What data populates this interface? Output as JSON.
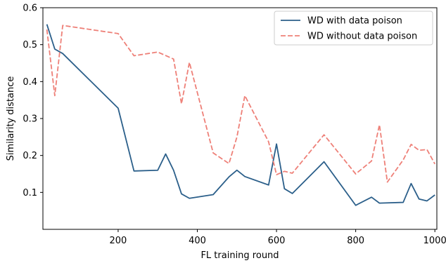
{
  "chart_data": {
    "type": "line",
    "xlabel": "FL training round",
    "ylabel": "Similarity distance",
    "xlim": [
      10,
      1005
    ],
    "ylim": [
      0.0,
      0.6
    ],
    "xticks": [
      200,
      400,
      600,
      800,
      1000
    ],
    "yticks": [
      0.1,
      0.2,
      0.3,
      0.4,
      0.5,
      0.6
    ],
    "grid": false,
    "legend_position": "top-right",
    "series": [
      {
        "name": "WD with data poison",
        "color": "#2b5f8a",
        "style": "solid",
        "points": [
          [
            20,
            0.555
          ],
          [
            40,
            0.488
          ],
          [
            60,
            0.476
          ],
          [
            200,
            0.328
          ],
          [
            240,
            0.158
          ],
          [
            300,
            0.16
          ],
          [
            320,
            0.204
          ],
          [
            340,
            0.16
          ],
          [
            360,
            0.096
          ],
          [
            380,
            0.084
          ],
          [
            440,
            0.094
          ],
          [
            480,
            0.142
          ],
          [
            500,
            0.16
          ],
          [
            520,
            0.143
          ],
          [
            580,
            0.12
          ],
          [
            600,
            0.231
          ],
          [
            620,
            0.11
          ],
          [
            640,
            0.097
          ],
          [
            720,
            0.183
          ],
          [
            800,
            0.065
          ],
          [
            840,
            0.087
          ],
          [
            860,
            0.071
          ],
          [
            920,
            0.073
          ],
          [
            940,
            0.124
          ],
          [
            960,
            0.082
          ],
          [
            980,
            0.077
          ],
          [
            1000,
            0.093
          ]
        ]
      },
      {
        "name": "WD without data poison",
        "color": "#ee8078",
        "style": "dashed",
        "points": [
          [
            20,
            0.541
          ],
          [
            40,
            0.362
          ],
          [
            60,
            0.552
          ],
          [
            200,
            0.53
          ],
          [
            240,
            0.47
          ],
          [
            300,
            0.48
          ],
          [
            340,
            0.461
          ],
          [
            360,
            0.34
          ],
          [
            380,
            0.452
          ],
          [
            440,
            0.207
          ],
          [
            480,
            0.178
          ],
          [
            500,
            0.25
          ],
          [
            520,
            0.362
          ],
          [
            580,
            0.237
          ],
          [
            600,
            0.148
          ],
          [
            620,
            0.157
          ],
          [
            640,
            0.152
          ],
          [
            720,
            0.256
          ],
          [
            800,
            0.15
          ],
          [
            840,
            0.185
          ],
          [
            860,
            0.283
          ],
          [
            880,
            0.128
          ],
          [
            920,
            0.188
          ],
          [
            940,
            0.23
          ],
          [
            960,
            0.214
          ],
          [
            980,
            0.216
          ],
          [
            1000,
            0.177
          ]
        ]
      }
    ]
  }
}
